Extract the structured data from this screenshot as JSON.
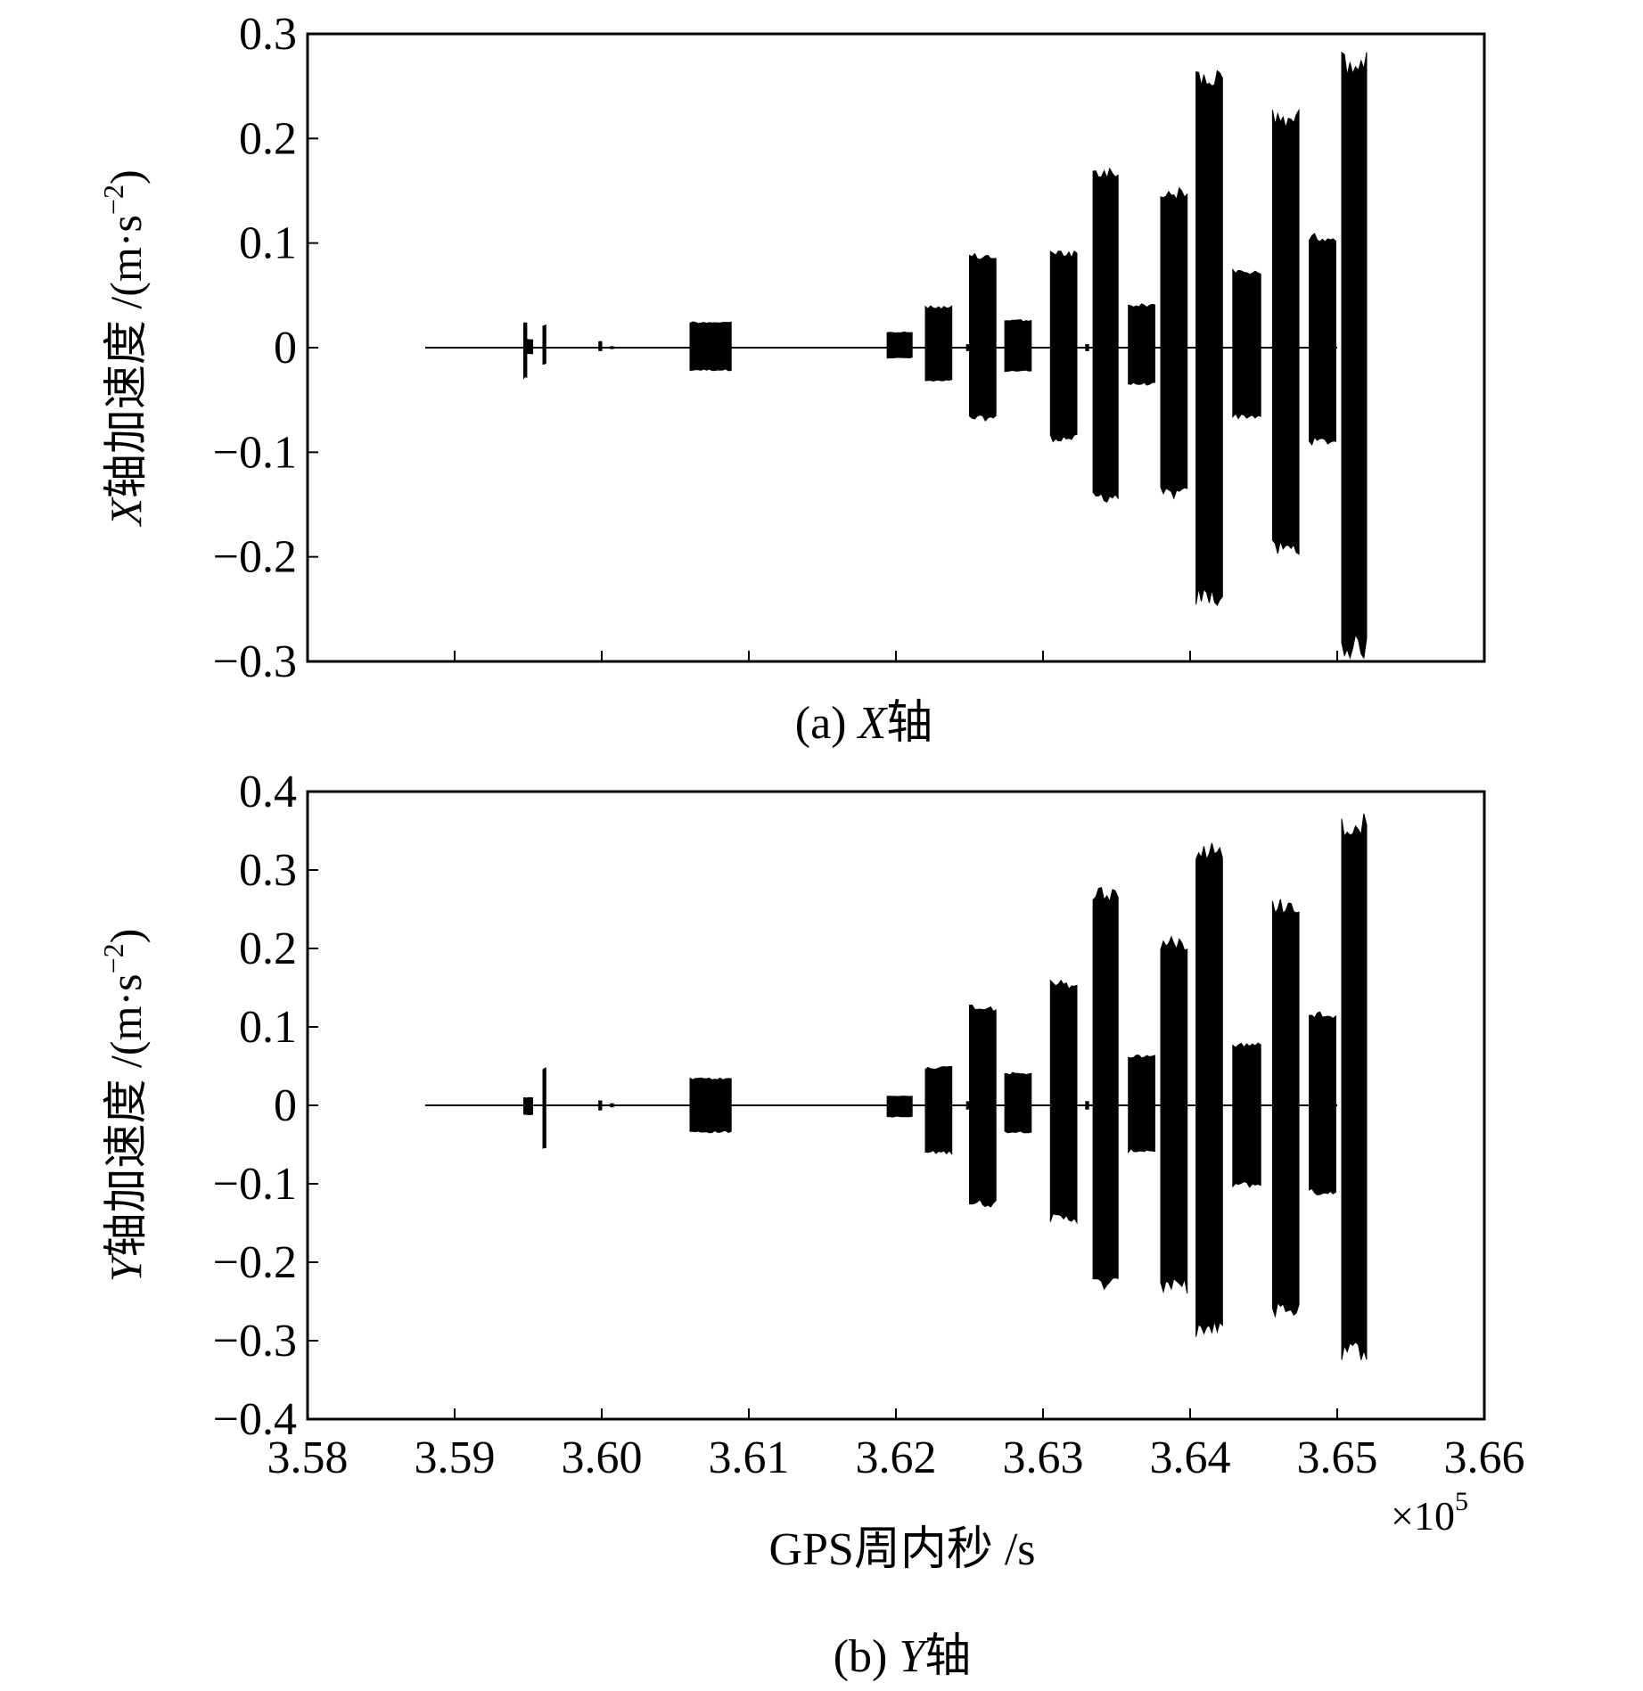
{
  "chart_data": [
    {
      "type": "line",
      "panel_label": "(a)",
      "panel_axis": "X",
      "panel_suffix": "轴",
      "ylabel": "X轴加速度 /(m·s⁻²)",
      "ylabel_parts": {
        "axis": "X",
        "text": "轴加速度 /(m·s",
        "exp": "−2",
        "close": ")"
      },
      "xlim": [
        358000,
        366000
      ],
      "ylim": [
        -0.3,
        0.3
      ],
      "yticks": [
        0.3,
        0.2,
        0.1,
        0,
        -0.1,
        -0.2,
        -0.3
      ],
      "ytick_labels": [
        "0.3",
        "0.2",
        "0.1",
        "0",
        "−0.1",
        "−0.2",
        "−0.3"
      ],
      "baseline": {
        "x_start": 358800,
        "x_end": 365000,
        "y": 0
      },
      "bursts": [
        {
          "x0": 359470,
          "x1": 359490,
          "ymin": -0.03,
          "ymax": 0.025
        },
        {
          "x0": 359490,
          "x1": 359530,
          "ymin": -0.006,
          "ymax": 0.008
        },
        {
          "x0": 359600,
          "x1": 359620,
          "ymin": -0.016,
          "ymax": 0.022
        },
        {
          "x0": 359980,
          "x1": 360000,
          "ymin": -0.003,
          "ymax": 0.006
        },
        {
          "x0": 360060,
          "x1": 360080,
          "ymin": -0.001,
          "ymax": 0.001
        },
        {
          "x0": 360600,
          "x1": 360880,
          "ymin": -0.022,
          "ymax": 0.025
        },
        {
          "x0": 361940,
          "x1": 362110,
          "ymin": -0.01,
          "ymax": 0.015
        },
        {
          "x0": 362200,
          "x1": 362380,
          "ymin": -0.033,
          "ymax": 0.04
        },
        {
          "x0": 362480,
          "x1": 362520,
          "ymin": -0.003,
          "ymax": 0.003
        },
        {
          "x0": 362500,
          "x1": 362680,
          "ymin": -0.07,
          "ymax": 0.09
        },
        {
          "x0": 362740,
          "x1": 362920,
          "ymin": -0.023,
          "ymax": 0.027
        },
        {
          "x0": 363050,
          "x1": 363230,
          "ymin": -0.09,
          "ymax": 0.093
        },
        {
          "x0": 363290,
          "x1": 363310,
          "ymin": -0.003,
          "ymax": 0.003
        },
        {
          "x0": 363340,
          "x1": 363510,
          "ymin": -0.148,
          "ymax": 0.173
        },
        {
          "x0": 363580,
          "x1": 363760,
          "ymin": -0.036,
          "ymax": 0.042
        },
        {
          "x0": 363800,
          "x1": 363980,
          "ymin": -0.145,
          "ymax": 0.153
        },
        {
          "x0": 364040,
          "x1": 364220,
          "ymin": -0.248,
          "ymax": 0.268
        },
        {
          "x0": 364290,
          "x1": 364480,
          "ymin": -0.068,
          "ymax": 0.075
        },
        {
          "x0": 364560,
          "x1": 364740,
          "ymin": -0.2,
          "ymax": 0.228
        },
        {
          "x0": 364810,
          "x1": 364990,
          "ymin": -0.093,
          "ymax": 0.11
        },
        {
          "x0": 365030,
          "x1": 365200,
          "ymin": -0.298,
          "ymax": 0.283
        }
      ]
    },
    {
      "type": "line",
      "panel_label": "(b)",
      "panel_axis": "Y",
      "panel_suffix": "轴",
      "ylabel": "Y轴加速度 /(m·s⁻²)",
      "ylabel_parts": {
        "axis": "Y",
        "text": "轴加速度 /(m·s",
        "exp": "−2",
        "close": ")"
      },
      "xlabel": "GPS周内秒 /s",
      "xlim": [
        358000,
        366000
      ],
      "ylim": [
        -0.4,
        0.4
      ],
      "xticks": [
        358000,
        359000,
        360000,
        361000,
        362000,
        363000,
        364000,
        365000,
        366000
      ],
      "xtick_labels": [
        "3.58",
        "3.59",
        "3.60",
        "3.61",
        "3.62",
        "3.63",
        "3.64",
        "3.65",
        "3.66"
      ],
      "x_multiplier": {
        "base": "×10",
        "exp": "5"
      },
      "yticks": [
        0.4,
        0.3,
        0.2,
        0.1,
        0,
        -0.1,
        -0.2,
        -0.3,
        -0.4
      ],
      "ytick_labels": [
        "0.4",
        "0.3",
        "0.2",
        "0.1",
        "0",
        "−0.1",
        "−0.2",
        "−0.3",
        "−0.4"
      ],
      "baseline": {
        "x_start": 358800,
        "x_end": 365000,
        "y": 0
      },
      "bursts": [
        {
          "x0": 359470,
          "x1": 359530,
          "ymin": -0.012,
          "ymax": 0.01
        },
        {
          "x0": 359600,
          "x1": 359620,
          "ymin": -0.055,
          "ymax": 0.048
        },
        {
          "x0": 359980,
          "x1": 360000,
          "ymin": -0.006,
          "ymax": 0.006
        },
        {
          "x0": 360060,
          "x1": 360080,
          "ymin": -0.002,
          "ymax": 0.002
        },
        {
          "x0": 360600,
          "x1": 360880,
          "ymin": -0.035,
          "ymax": 0.035
        },
        {
          "x0": 361940,
          "x1": 362110,
          "ymin": -0.015,
          "ymax": 0.012
        },
        {
          "x0": 362200,
          "x1": 362380,
          "ymin": -0.062,
          "ymax": 0.05
        },
        {
          "x0": 362480,
          "x1": 362520,
          "ymin": -0.005,
          "ymax": 0.005
        },
        {
          "x0": 362500,
          "x1": 362680,
          "ymin": -0.13,
          "ymax": 0.13
        },
        {
          "x0": 362740,
          "x1": 362920,
          "ymin": -0.035,
          "ymax": 0.042
        },
        {
          "x0": 363050,
          "x1": 363230,
          "ymin": -0.15,
          "ymax": 0.16
        },
        {
          "x0": 363290,
          "x1": 363310,
          "ymin": -0.005,
          "ymax": 0.005
        },
        {
          "x0": 363340,
          "x1": 363510,
          "ymin": -0.237,
          "ymax": 0.28
        },
        {
          "x0": 363580,
          "x1": 363760,
          "ymin": -0.06,
          "ymax": 0.065
        },
        {
          "x0": 363800,
          "x1": 363980,
          "ymin": -0.24,
          "ymax": 0.215
        },
        {
          "x0": 364040,
          "x1": 364220,
          "ymin": -0.298,
          "ymax": 0.34
        },
        {
          "x0": 364290,
          "x1": 364480,
          "ymin": -0.105,
          "ymax": 0.08
        },
        {
          "x0": 364560,
          "x1": 364740,
          "ymin": -0.27,
          "ymax": 0.265
        },
        {
          "x0": 364810,
          "x1": 364990,
          "ymin": -0.115,
          "ymax": 0.12
        },
        {
          "x0": 365030,
          "x1": 365200,
          "ymin": -0.325,
          "ymax": 0.372
        }
      ]
    }
  ]
}
